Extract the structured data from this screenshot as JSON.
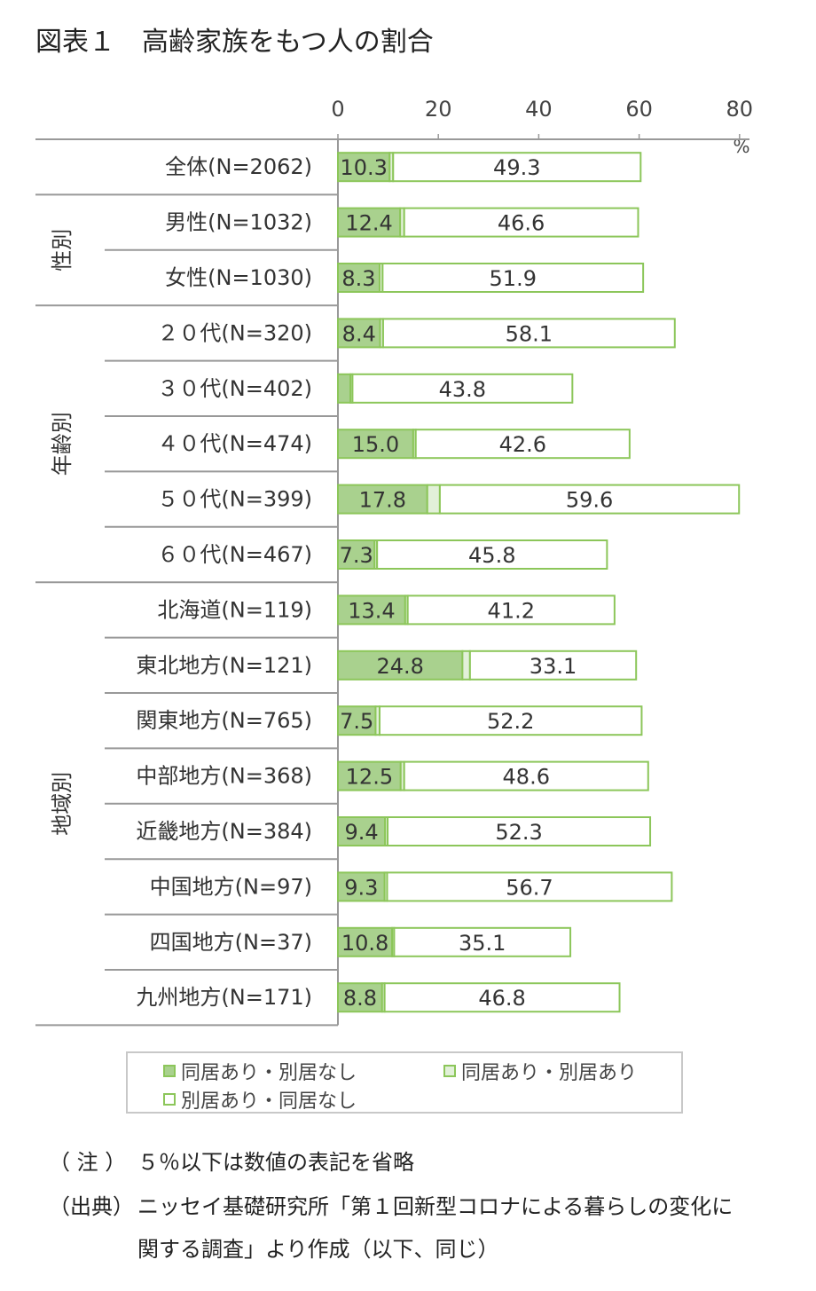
{
  "title": "図表１　高齢家族をもつ人の割合",
  "chart_data": {
    "type": "bar",
    "orientation": "horizontal",
    "stacked": true,
    "xlim": [
      0,
      80
    ],
    "xticks": [
      "0",
      "20",
      "40",
      "60",
      "80"
    ],
    "unit_label": "%",
    "groups": [
      {
        "label": "",
        "start": 0,
        "end": 0
      },
      {
        "label": "性別",
        "start": 1,
        "end": 2
      },
      {
        "label": "年齢別",
        "start": 3,
        "end": 7
      },
      {
        "label": "地域別",
        "start": 8,
        "end": 15
      }
    ],
    "categories": [
      "全体(N=2062)",
      "男性(N=1032)",
      "女性(N=1030)",
      "２０代(N=320)",
      "３０代(N=402)",
      "４０代(N=474)",
      "５０代(N=399)",
      "６０代(N=467)",
      "北海道(N=119)",
      "東北地方(N=121)",
      "関東地方(N=765)",
      "中部地方(N=368)",
      "近畿地方(N=384)",
      "中国地方(N=97)",
      "四国地方(N=37)",
      "九州地方(N=171)"
    ],
    "series": [
      {
        "name": "同居あり・別居なし",
        "color": "#a9d18e",
        "values": [
          10.3,
          12.4,
          8.3,
          8.4,
          2.5,
          15.0,
          17.8,
          7.3,
          13.4,
          24.8,
          7.5,
          12.5,
          9.4,
          9.3,
          10.8,
          8.8
        ],
        "labels": [
          "10.3",
          "12.4",
          "8.3",
          "8.4",
          "",
          "15.0",
          "17.8",
          "7.3",
          "13.4",
          "24.8",
          "7.5",
          "12.5",
          "9.4",
          "9.3",
          "10.8",
          "8.8"
        ]
      },
      {
        "name": "同居あり・別居あり",
        "color": "#e2f0d9",
        "values": [
          0.7,
          0.8,
          0.6,
          0.6,
          0.4,
          0.5,
          2.5,
          0.5,
          0.5,
          1.5,
          0.8,
          0.7,
          0.5,
          0.5,
          0.4,
          0.5
        ],
        "labels": [
          "",
          "",
          "",
          "",
          "",
          "",
          "",
          "",
          "",
          "",
          "",
          "",
          "",
          "",
          "",
          ""
        ]
      },
      {
        "name": "別居あり・同居なし",
        "color": "#ffffff",
        "values": [
          49.3,
          46.6,
          51.9,
          58.1,
          43.8,
          42.6,
          59.6,
          45.8,
          41.2,
          33.1,
          52.2,
          48.6,
          52.3,
          56.7,
          35.1,
          46.8
        ],
        "labels": [
          "49.3",
          "46.6",
          "51.9",
          "58.1",
          "43.8",
          "42.6",
          "59.6",
          "45.8",
          "41.2",
          "33.1",
          "52.2",
          "48.6",
          "52.3",
          "56.7",
          "35.1",
          "46.8"
        ]
      }
    ],
    "outline_color": "#8cc65a"
  },
  "legend": [
    {
      "label": "同居あり・別居なし",
      "fill": "#a9d18e",
      "border": "#8cc65a"
    },
    {
      "label": "同居あり・別居あり",
      "fill": "#e2f0d9",
      "border": "#8cc65a"
    },
    {
      "label": "別居あり・同居なし",
      "fill": "#ffffff",
      "border": "#8cc65a"
    }
  ],
  "notes": {
    "note_label": "（ 注 ）",
    "note_text": "５％以下は数値の表記を省略",
    "source_label": "（出典）",
    "source_line1": "ニッセイ基礎研究所「第１回新型コロナによる暮らしの変化に",
    "source_line2": "関する調査」より作成（以下、同じ）"
  }
}
